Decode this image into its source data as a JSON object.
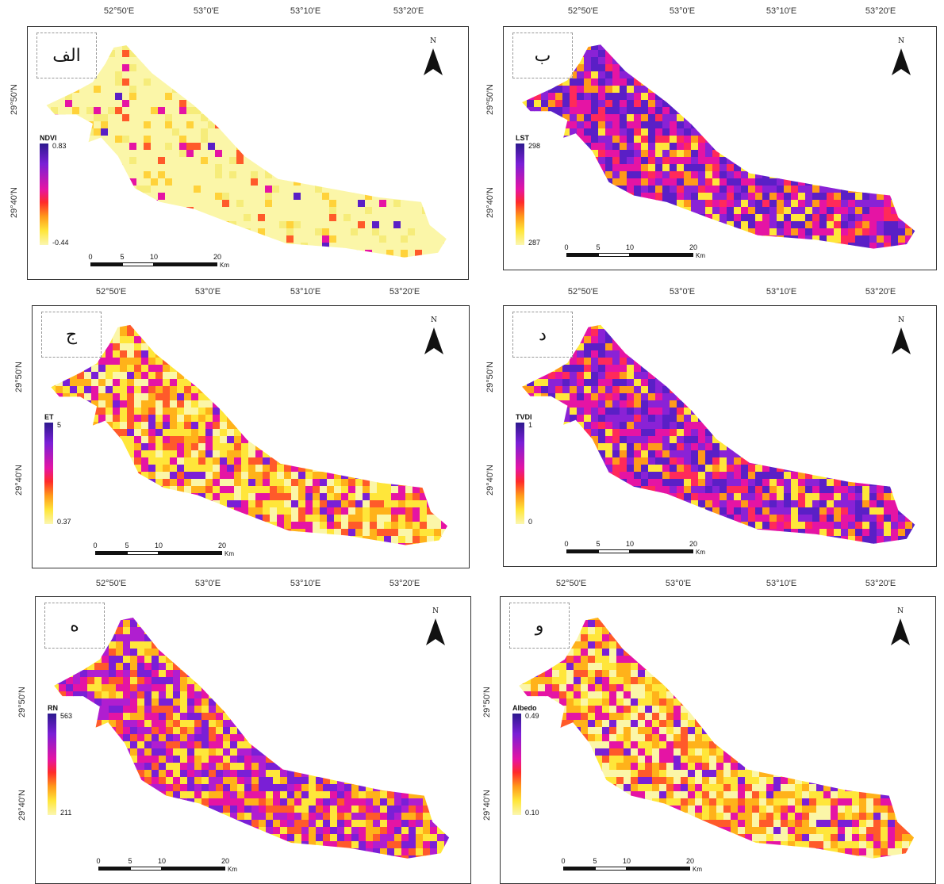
{
  "x_ticks": [
    "52°50'E",
    "53°0'E",
    "53°10'E",
    "53°20'E"
  ],
  "y_ticks": [
    "29°50'N",
    "29°40'N"
  ],
  "north_label": "N",
  "scale_labels": [
    "0",
    "5",
    "10",
    "20"
  ],
  "scale_unit": "Km",
  "panels": [
    {
      "tag": "الف",
      "legend_title": "NDVI",
      "max": "0.83",
      "min": "-0.44",
      "theme": "mostly-yellow"
    },
    {
      "tag": "ب",
      "legend_title": "LST",
      "max": "298",
      "min": "287",
      "theme": "mostly-purple"
    },
    {
      "tag": "ج",
      "legend_title": "ET",
      "max": "5",
      "min": "0.37",
      "theme": "mixed-yellow"
    },
    {
      "tag": "د",
      "legend_title": "TVDI",
      "max": "1",
      "min": "0",
      "theme": "mostly-purple"
    },
    {
      "tag": "ه",
      "legend_title": "RN",
      "max": "563",
      "min": "211",
      "theme": "mixed-purple"
    },
    {
      "tag": "و",
      "legend_title": "Albedo",
      "max": "0.49",
      "min": "0.10",
      "theme": "mixed-yellow"
    }
  ],
  "colors": {
    "palette": [
      "#2d1a8e",
      "#7a1fd6",
      "#e514a4",
      "#ff2a2a",
      "#ff9a1a",
      "#ffe63a",
      "#fbf6b0"
    ],
    "frame": "#333333"
  }
}
